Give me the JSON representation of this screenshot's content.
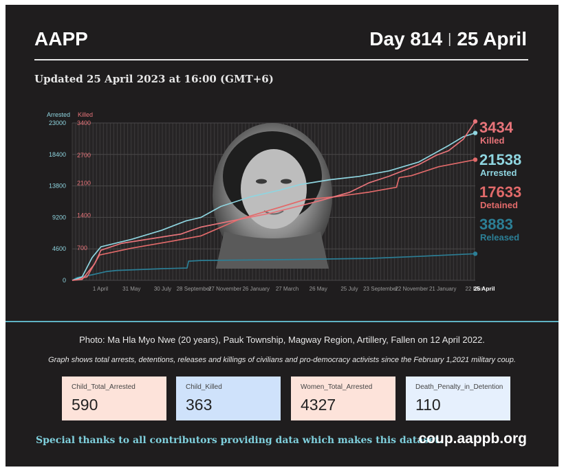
{
  "header": {
    "brand": "AAPP",
    "day_label": "Day 814",
    "separator": "|",
    "date_label": "25 April",
    "updated": "Updated 25 April 2023 at 16:00 (GMT+6)"
  },
  "colors": {
    "background": "#1f1d1e",
    "killed": "#e8747a",
    "arrested": "#8fd5e0",
    "detained": "#e26a6a",
    "released": "#2c7f96",
    "divider": "#5fb3c4"
  },
  "chart_data": {
    "type": "line",
    "y_left_label": "Arrested",
    "y_right_label": "Killed",
    "y_left_ticks": [
      0,
      4600,
      9200,
      13800,
      18400,
      23000
    ],
    "y_right_ticks_labels": [
      "700",
      "1400",
      "2100",
      "2700",
      "3400"
    ],
    "y_right_ticks": [
      700,
      1400,
      2100,
      2700,
      3400
    ],
    "y_left_range": [
      0,
      23000
    ],
    "y_right_range": [
      0,
      3400
    ],
    "x_ticks": [
      "1 April",
      "31 May",
      "30 July",
      "28 September",
      "27 November",
      "26 January",
      "27 March",
      "26 May",
      "25 July",
      "23 September",
      "22 November",
      "21 January",
      "22 Mar",
      "25 April"
    ],
    "x_range_days": [
      0,
      814
    ],
    "grid": true,
    "series": [
      {
        "name": "Killed",
        "axis": "right",
        "color": "#e8747a",
        "points": [
          [
            0,
            0
          ],
          [
            20,
            20
          ],
          [
            45,
            350
          ],
          [
            58,
            650
          ],
          [
            100,
            800
          ],
          [
            160,
            900
          ],
          [
            220,
            1000
          ],
          [
            240,
            1080
          ],
          [
            260,
            1150
          ],
          [
            320,
            1280
          ],
          [
            400,
            1450
          ],
          [
            460,
            1610
          ],
          [
            500,
            1720
          ],
          [
            560,
            1900
          ],
          [
            600,
            2110
          ],
          [
            640,
            2250
          ],
          [
            700,
            2500
          ],
          [
            735,
            2700
          ],
          [
            760,
            2800
          ],
          [
            790,
            3050
          ],
          [
            814,
            3434
          ]
        ],
        "final": "3434",
        "final_label": "Killed"
      },
      {
        "name": "Arrested",
        "axis": "left",
        "color": "#8fd5e0",
        "points": [
          [
            0,
            0
          ],
          [
            20,
            500
          ],
          [
            40,
            3300
          ],
          [
            58,
            4900
          ],
          [
            120,
            6000
          ],
          [
            180,
            7300
          ],
          [
            230,
            8700
          ],
          [
            260,
            9200
          ],
          [
            300,
            10800
          ],
          [
            360,
            12200
          ],
          [
            420,
            13200
          ],
          [
            460,
            14000
          ],
          [
            520,
            14700
          ],
          [
            580,
            15200
          ],
          [
            640,
            16000
          ],
          [
            700,
            17300
          ],
          [
            760,
            19700
          ],
          [
            790,
            21000
          ],
          [
            814,
            21538
          ]
        ],
        "final": "21538",
        "final_label": "Arrested"
      },
      {
        "name": "Detained",
        "axis": "left",
        "color": "#e26a6a",
        "points": [
          [
            0,
            0
          ],
          [
            30,
            500
          ],
          [
            55,
            3700
          ],
          [
            120,
            4700
          ],
          [
            200,
            5700
          ],
          [
            260,
            6500
          ],
          [
            340,
            9000
          ],
          [
            420,
            10700
          ],
          [
            470,
            11800
          ],
          [
            530,
            12200
          ],
          [
            600,
            12900
          ],
          [
            655,
            13600
          ],
          [
            660,
            15000
          ],
          [
            685,
            15300
          ],
          [
            740,
            16600
          ],
          [
            814,
            17633
          ]
        ],
        "final": "17633",
        "final_label": "Detained"
      },
      {
        "name": "Released",
        "axis": "left",
        "color": "#2c7f96",
        "points": [
          [
            0,
            0
          ],
          [
            10,
            400
          ],
          [
            40,
            800
          ],
          [
            70,
            1300
          ],
          [
            90,
            1450
          ],
          [
            180,
            1700
          ],
          [
            232,
            1800
          ],
          [
            235,
            2800
          ],
          [
            260,
            2900
          ],
          [
            400,
            3000
          ],
          [
            600,
            3200
          ],
          [
            700,
            3500
          ],
          [
            814,
            3883
          ]
        ],
        "final": "3883",
        "final_label": "Released"
      }
    ]
  },
  "photo": {
    "caption": "Photo: Ma Hla Myo Nwe (20 years), Pauk Township, Magway Region, Artillery,  Fallen on 12 April 2022."
  },
  "note": "Graph shows total arrests, detentions, releases and killings of civilians and pro-democracy activists since the February 1,2021 military coup.",
  "stats": [
    {
      "label": "Child_Total_Arrested",
      "value": "590",
      "bg": "#fde3da"
    },
    {
      "label": "Child_Killed",
      "value": "363",
      "bg": "#cfe2fb"
    },
    {
      "label": "Women_Total_Arrested",
      "value": "4327",
      "bg": "#fde3da"
    },
    {
      "label": "Death_Penalty_in_Detention",
      "value": "110",
      "bg": "#e6f0fd"
    }
  ],
  "footer": {
    "thanks": "Special thanks to all contributors providing data which makes this dataset.",
    "site": "coup.aappb.org"
  }
}
